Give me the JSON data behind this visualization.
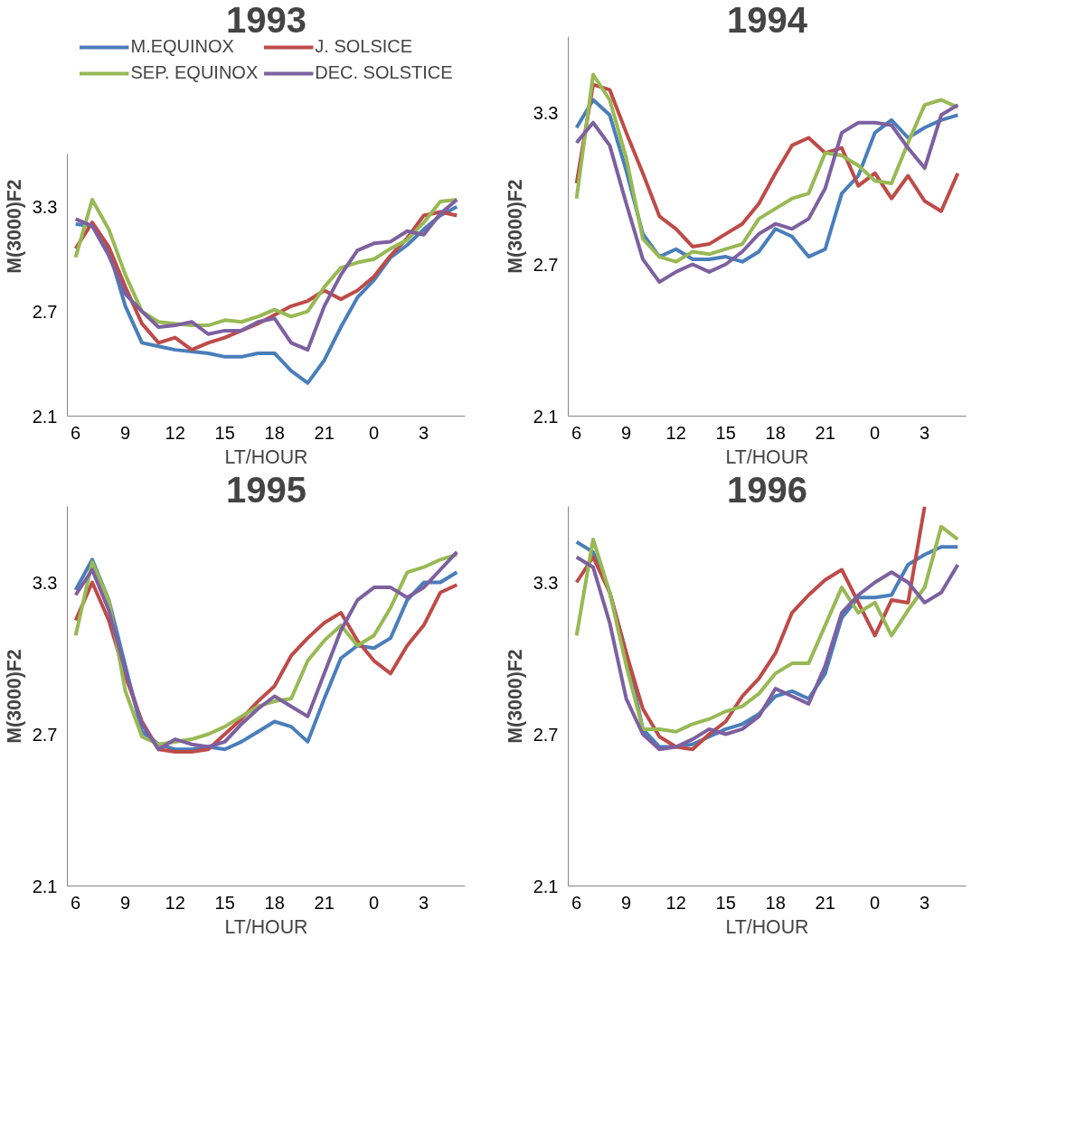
{
  "chart_data": [
    {
      "type": "line",
      "title": "1993",
      "xlabel": "LT/HOUR",
      "ylabel": "M(3000)F2",
      "legend": "top",
      "line_style": "solid",
      "ylim": [
        2.1,
        3.6
      ],
      "yticks": [
        2.1,
        2.7,
        3.3
      ],
      "categories": [
        "6",
        null,
        null,
        "9",
        null,
        null,
        "12",
        null,
        null,
        "15",
        null,
        null,
        "18",
        null,
        null,
        "21",
        null,
        null,
        "0",
        null,
        null,
        "3",
        null,
        null
      ],
      "series": [
        {
          "name": "M.EQUINOX",
          "color": "#4a7ebb",
          "values": [
            3.2,
            3.19,
            3.05,
            2.73,
            2.52,
            2.5,
            2.48,
            2.47,
            2.46,
            2.44,
            2.44,
            2.46,
            2.46,
            2.36,
            2.29,
            2.42,
            2.61,
            2.78,
            2.88,
            3.01,
            3.08,
            3.17,
            3.25,
            3.3
          ]
        },
        {
          "name": "J. SOLSICE",
          "color": "#be4b48",
          "values": [
            3.06,
            3.21,
            3.07,
            2.84,
            2.63,
            2.52,
            2.55,
            2.48,
            2.52,
            2.55,
            2.59,
            2.63,
            2.68,
            2.73,
            2.76,
            2.82,
            2.77,
            2.82,
            2.9,
            3.02,
            3.12,
            3.25,
            3.27,
            3.25
          ]
        },
        {
          "name": "SEP. EQUINOX",
          "color": "#98b954",
          "values": [
            3.01,
            3.34,
            3.17,
            2.91,
            2.7,
            2.64,
            2.63,
            2.62,
            2.62,
            2.65,
            2.64,
            2.67,
            2.71,
            2.67,
            2.7,
            2.84,
            2.95,
            2.98,
            3.0,
            3.06,
            3.11,
            3.21,
            3.33,
            3.34
          ]
        },
        {
          "name": "DEC. SOLSTICE",
          "color": "#7d60a0",
          "values": [
            3.23,
            3.19,
            3.02,
            2.8,
            2.7,
            2.61,
            2.62,
            2.64,
            2.57,
            2.59,
            2.59,
            2.64,
            2.66,
            2.52,
            2.48,
            2.73,
            2.91,
            3.05,
            3.09,
            3.1,
            3.16,
            3.14,
            3.26,
            3.34
          ]
        }
      ]
    },
    {
      "type": "line",
      "title": "1994",
      "xlabel": "LT/HOUR",
      "ylabel": "M(3000)F2",
      "line_style": "solid",
      "ylim": [
        2.1,
        3.6
      ],
      "yticks": [
        2.1,
        2.7,
        3.3
      ],
      "categories": [
        "6",
        null,
        null,
        "9",
        null,
        null,
        "12",
        null,
        null,
        "15",
        null,
        null,
        "18",
        null,
        null,
        "21",
        null,
        null,
        "0",
        null,
        null,
        "3",
        null,
        null
      ],
      "series": [
        {
          "color": "#4a7ebb",
          "values": [
            3.24,
            3.35,
            3.29,
            3.07,
            2.82,
            2.73,
            2.76,
            2.72,
            2.72,
            2.73,
            2.71,
            2.75,
            2.84,
            2.81,
            2.73,
            2.76,
            2.98,
            3.05,
            3.22,
            3.27,
            3.2,
            3.24,
            3.27,
            3.29
          ]
        },
        {
          "color": "#be4b48",
          "values": [
            3.02,
            3.41,
            3.39,
            3.22,
            3.06,
            2.89,
            2.84,
            2.77,
            2.78,
            2.82,
            2.86,
            2.94,
            3.06,
            3.17,
            3.2,
            3.14,
            3.16,
            3.01,
            3.06,
            2.96,
            3.05,
            2.95,
            2.91,
            3.06
          ]
        },
        {
          "color": "#98b954",
          "values": [
            2.96,
            3.45,
            3.35,
            3.12,
            2.8,
            2.73,
            2.71,
            2.75,
            2.74,
            2.76,
            2.78,
            2.88,
            2.92,
            2.96,
            2.98,
            3.14,
            3.13,
            3.09,
            3.03,
            3.02,
            3.18,
            3.33,
            3.35,
            3.32
          ]
        },
        {
          "color": "#7d60a0",
          "values": [
            3.18,
            3.26,
            3.17,
            2.94,
            2.72,
            2.63,
            2.67,
            2.7,
            2.67,
            2.7,
            2.75,
            2.82,
            2.86,
            2.84,
            2.88,
            3.0,
            3.22,
            3.26,
            3.26,
            3.25,
            3.16,
            3.08,
            3.29,
            3.33
          ]
        }
      ]
    },
    {
      "type": "line",
      "title": "1995",
      "xlabel": "LT/HOUR",
      "ylabel": "M(3000)F2",
      "line_style": "solid",
      "ylim": [
        2.1,
        3.6
      ],
      "yticks": [
        2.1,
        2.7,
        3.3
      ],
      "categories": [
        "6",
        null,
        null,
        "9",
        null,
        null,
        "12",
        null,
        null,
        "15",
        null,
        null,
        "18",
        null,
        null,
        "21",
        null,
        null,
        "0",
        null,
        null,
        "3",
        null,
        null
      ],
      "series": [
        {
          "color": "#4a7ebb",
          "values": [
            3.27,
            3.39,
            3.23,
            2.97,
            2.71,
            2.66,
            2.64,
            2.64,
            2.65,
            2.64,
            2.67,
            2.71,
            2.75,
            2.73,
            2.67,
            2.84,
            3.0,
            3.05,
            3.04,
            3.08,
            3.23,
            3.3,
            3.3,
            3.34
          ]
        },
        {
          "color": "#be4b48",
          "values": [
            3.15,
            3.3,
            3.15,
            2.93,
            2.75,
            2.64,
            2.63,
            2.63,
            2.64,
            2.7,
            2.76,
            2.83,
            2.89,
            3.01,
            3.08,
            3.14,
            3.18,
            3.07,
            2.99,
            2.94,
            3.05,
            3.13,
            3.26,
            3.29
          ]
        },
        {
          "color": "#98b954",
          "values": [
            3.09,
            3.38,
            3.23,
            2.87,
            2.69,
            2.66,
            2.67,
            2.68,
            2.7,
            2.73,
            2.77,
            2.81,
            2.83,
            2.84,
            2.99,
            3.07,
            3.13,
            3.05,
            3.09,
            3.2,
            3.34,
            3.36,
            3.39,
            3.41
          ]
        },
        {
          "color": "#7d60a0",
          "values": [
            3.25,
            3.35,
            3.19,
            2.95,
            2.74,
            2.64,
            2.68,
            2.66,
            2.65,
            2.67,
            2.74,
            2.8,
            2.85,
            2.81,
            2.77,
            2.94,
            3.11,
            3.23,
            3.28,
            3.28,
            3.24,
            3.28,
            3.35,
            3.42
          ]
        }
      ]
    },
    {
      "type": "line",
      "title": "1996",
      "xlabel": "LT/HOUR",
      "ylabel": "M(3000)F2",
      "line_style": "solid",
      "ylim": [
        2.1,
        3.6
      ],
      "yticks": [
        2.1,
        2.7,
        3.3
      ],
      "categories": [
        "6",
        null,
        null,
        "9",
        null,
        null,
        "12",
        null,
        null,
        "15",
        null,
        null,
        "18",
        null,
        null,
        "21",
        null,
        null,
        "0",
        null,
        null,
        "3",
        null,
        null
      ],
      "series": [
        {
          "color": "#4a7ebb",
          "values": [
            3.46,
            3.42,
            3.26,
            3.02,
            2.72,
            2.65,
            2.65,
            2.66,
            2.69,
            2.72,
            2.74,
            2.78,
            2.85,
            2.87,
            2.84,
            2.94,
            3.16,
            3.24,
            3.24,
            3.25,
            3.37,
            3.41,
            3.44,
            3.44
          ]
        },
        {
          "color": "#be4b48",
          "values": [
            3.3,
            3.4,
            3.26,
            3.02,
            2.8,
            2.69,
            2.65,
            2.64,
            2.7,
            2.75,
            2.85,
            2.92,
            3.02,
            3.18,
            3.25,
            3.31,
            3.35,
            3.22,
            3.09,
            3.23,
            3.22,
            3.6,
            null,
            null
          ]
        },
        {
          "color": "#98b954",
          "values": [
            3.09,
            3.47,
            3.26,
            2.97,
            2.72,
            2.72,
            2.71,
            2.74,
            2.76,
            2.79,
            2.81,
            2.86,
            2.94,
            2.98,
            2.98,
            3.13,
            3.28,
            3.18,
            3.22,
            3.09,
            3.19,
            3.28,
            3.52,
            3.47
          ]
        },
        {
          "color": "#7d60a0",
          "values": [
            3.4,
            3.36,
            3.14,
            2.84,
            2.7,
            2.64,
            2.65,
            2.68,
            2.72,
            2.7,
            2.72,
            2.77,
            2.88,
            2.85,
            2.82,
            2.97,
            3.18,
            3.25,
            3.3,
            3.34,
            3.3,
            3.22,
            3.26,
            3.37
          ]
        }
      ]
    }
  ]
}
